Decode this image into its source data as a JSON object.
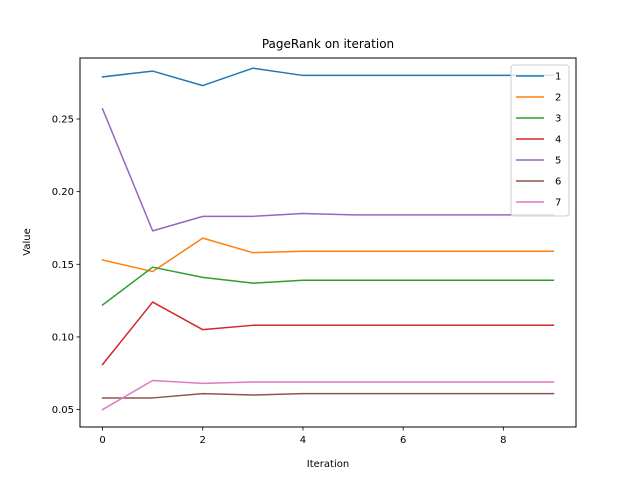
{
  "chart_data": {
    "type": "line",
    "title": "PageRank on iteration",
    "xlabel": "Iteration",
    "ylabel": "Value",
    "x": [
      0,
      1,
      2,
      3,
      4,
      5,
      6,
      7,
      8,
      9
    ],
    "xlim": [
      -0.45,
      9.45
    ],
    "ylim": [
      0.038,
      0.292
    ],
    "xticks": [
      0,
      2,
      4,
      6,
      8
    ],
    "yticks": [
      0.05,
      0.1,
      0.15,
      0.2,
      0.25
    ],
    "ytick_labels": [
      "0.05",
      "0.10",
      "0.15",
      "0.20",
      "0.25"
    ],
    "grid": false,
    "legend_position": "upper-right",
    "series": [
      {
        "name": "1",
        "color": "#1f77b4",
        "values": [
          0.279,
          0.283,
          0.273,
          0.285,
          0.28,
          0.28,
          0.28,
          0.28,
          0.28,
          0.28
        ]
      },
      {
        "name": "2",
        "color": "#ff7f0e",
        "values": [
          0.153,
          0.145,
          0.168,
          0.158,
          0.159,
          0.159,
          0.159,
          0.159,
          0.159,
          0.159
        ]
      },
      {
        "name": "3",
        "color": "#2ca02c",
        "values": [
          0.122,
          0.148,
          0.141,
          0.137,
          0.139,
          0.139,
          0.139,
          0.139,
          0.139,
          0.139
        ]
      },
      {
        "name": "4",
        "color": "#d62728",
        "values": [
          0.081,
          0.124,
          0.105,
          0.108,
          0.108,
          0.108,
          0.108,
          0.108,
          0.108,
          0.108
        ]
      },
      {
        "name": "5",
        "color": "#9467bd",
        "values": [
          0.257,
          0.173,
          0.183,
          0.183,
          0.185,
          0.184,
          0.184,
          0.184,
          0.184,
          0.184
        ]
      },
      {
        "name": "6",
        "color": "#8c564b",
        "values": [
          0.058,
          0.058,
          0.061,
          0.06,
          0.061,
          0.061,
          0.061,
          0.061,
          0.061,
          0.061
        ]
      },
      {
        "name": "7",
        "color": "#e377c2",
        "values": [
          0.05,
          0.07,
          0.068,
          0.069,
          0.069,
          0.069,
          0.069,
          0.069,
          0.069,
          0.069
        ]
      }
    ]
  }
}
